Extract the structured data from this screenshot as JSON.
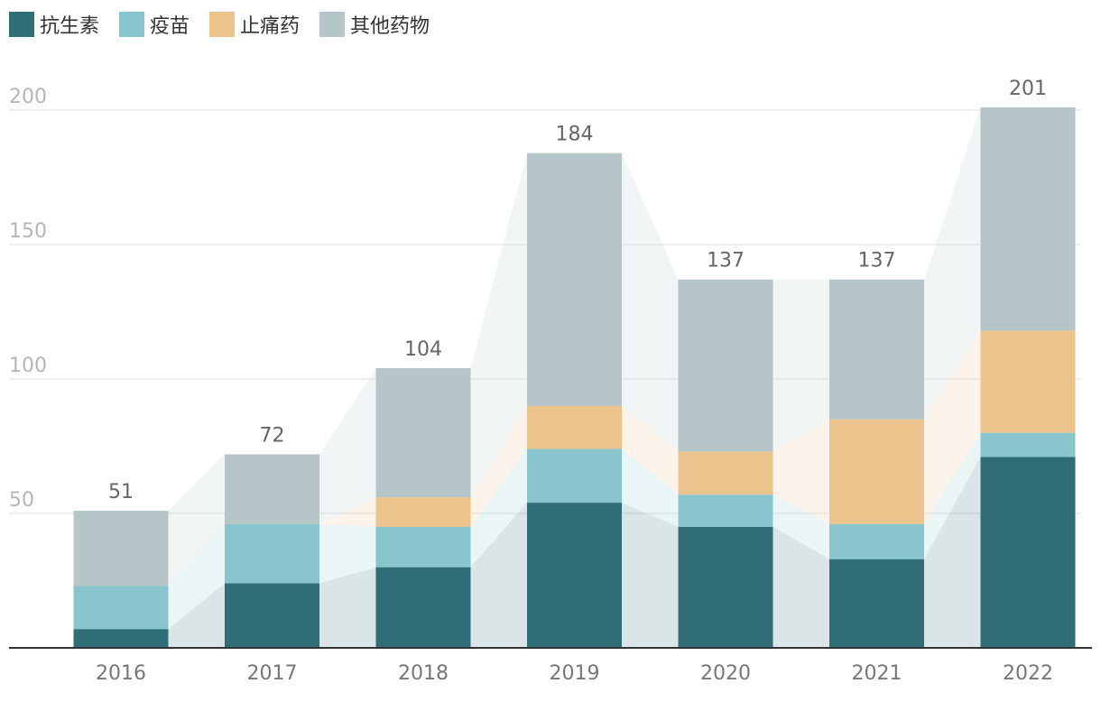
{
  "chart_data": {
    "type": "bar",
    "stacked": true,
    "categories": [
      "2016",
      "2017",
      "2018",
      "2019",
      "2020",
      "2021",
      "2022"
    ],
    "series": [
      {
        "name": "抗生素",
        "color": "#2f6e77",
        "values": [
          7,
          24,
          30,
          54,
          45,
          33,
          71
        ]
      },
      {
        "name": "疫苗",
        "color": "#88c5cc",
        "values": [
          16,
          22,
          15,
          20,
          12,
          13,
          9
        ]
      },
      {
        "name": "止痛药",
        "color": "#edc38d",
        "values": [
          0,
          0,
          11,
          16,
          16,
          39,
          38
        ]
      },
      {
        "name": "其他药物",
        "color": "#b5c5c8",
        "values": [
          28,
          26,
          48,
          94,
          64,
          52,
          83
        ]
      }
    ],
    "totals": [
      "51",
      "72",
      "104",
      "184",
      "137",
      "137",
      "201"
    ],
    "yticks": [
      "50",
      "100",
      "150",
      "200"
    ],
    "ylim": [
      0,
      200
    ],
    "grid": true,
    "legend_position": "top-left"
  }
}
